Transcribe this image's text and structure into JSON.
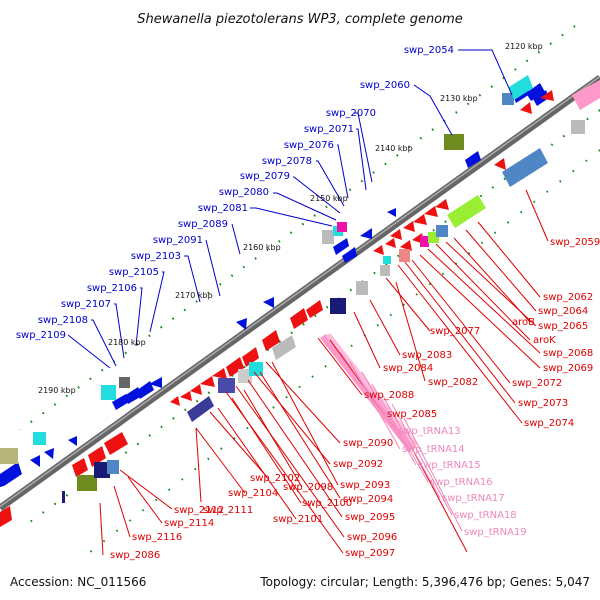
{
  "title": "Shewanella piezotolerans WP3, complete genome",
  "footer": {
    "accession": "Accession: NC_011566",
    "summary": "Topology: circular; Length: 5,396,476 bp; Genes: 5,047"
  },
  "colors": {
    "backbone": "#777777",
    "tick": "#1a8a1a",
    "label_blue": "#0000cc",
    "label_red": "#dd0000",
    "label_pink": "#ee88bb",
    "gene_red": "#ee1111",
    "gene_blue": "#0011dd",
    "gene_cyan": "#22dddd",
    "gene_pink": "#ff99cc",
    "gene_olive": "#6f8a1f",
    "gene_navy": "#1a1a77",
    "gene_steel": "#4f86c6",
    "gene_grey": "#bbbbbb",
    "gene_lime": "#99ee33",
    "gene_salmon": "#ee8888",
    "gene_magenta": "#ee11aa",
    "gene_khaki": "#b5b57a"
  },
  "kbp_labels": [
    "2120 kbp",
    "2130 kbp",
    "2140 kbp",
    "2150 kbp",
    "2160 kbp",
    "2170 kbp",
    "2180 kbp",
    "2190 kbp"
  ],
  "labels_blue": [
    "swp_2054",
    "swp_2060",
    "swp_2070",
    "swp_2071",
    "swp_2076",
    "swp_2078",
    "swp_2079",
    "swp_2080",
    "swp_2081",
    "swp_2089",
    "swp_2091",
    "swp_2103",
    "swp_2105",
    "swp_2106",
    "swp_2107",
    "swp_2108",
    "swp_2109"
  ],
  "labels_red": [
    "swp_2059",
    "swp_2062",
    "swp_2064",
    "aroB",
    "swp_2065",
    "aroK",
    "swp_2068",
    "swp_2069",
    "swp_2072",
    "swp_2073",
    "swp_2074",
    "swp_2077",
    "swp_2083",
    "swp_2084",
    "swp_2082",
    "swp_2088",
    "swp_2085",
    "swp_2090",
    "swp_2092",
    "swp_2093",
    "swp_2094",
    "swp_2095",
    "swp_2096",
    "swp_2097",
    "swp_2098",
    "swp_2100",
    "swp_2101",
    "swp_2102",
    "swp_2104",
    "swp_2111",
    "swp_2112",
    "swp_2114",
    "swp_2116",
    "swp_2086"
  ],
  "labels_pink": [
    "swp_tRNA13",
    "swp_tRNA14",
    "swp_tRNA15",
    "swp_tRNA16",
    "swp_tRNA17",
    "swp_tRNA18",
    "swp_tRNA19"
  ]
}
